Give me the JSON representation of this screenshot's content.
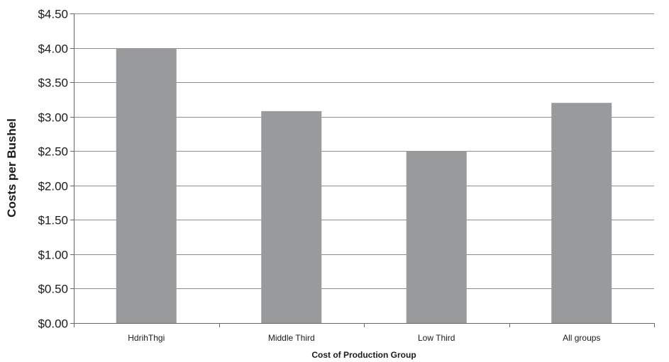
{
  "chart_data": {
    "type": "bar",
    "categories": [
      "HdrihThgi",
      "Middle Third",
      "Low Third",
      "All groups"
    ],
    "values": [
      3.99,
      3.08,
      2.5,
      3.2
    ],
    "title": "",
    "xlabel": "Cost of Production Group",
    "ylabel": "Costs per Bushel",
    "ylim": [
      0,
      4.5
    ],
    "yticks": [
      0,
      0.5,
      1.0,
      1.5,
      2.0,
      2.5,
      3.0,
      3.5,
      4.0,
      4.5
    ],
    "ytick_labels": [
      "$0.00",
      "$0.50",
      "$1.00",
      "$1.50",
      "$2.00",
      "$2.50",
      "$3.00",
      "$3.50",
      "$4.00",
      "$4.50"
    ],
    "grid": true,
    "legend": "none",
    "colors": {
      "bar": "#999a9c",
      "grid": "#8c8c8c",
      "axis": "#666666"
    }
  }
}
